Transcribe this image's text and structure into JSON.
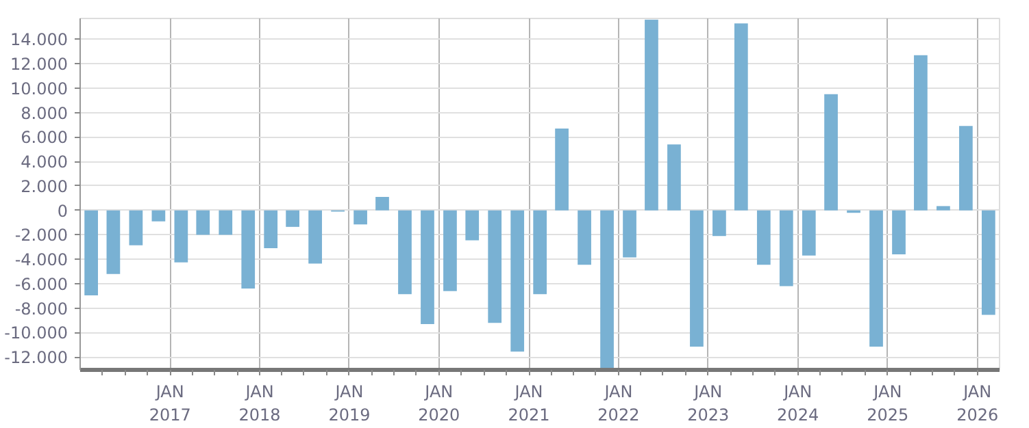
{
  "chart_data": {
    "type": "bar",
    "x": [
      "2016-02-15",
      "2016-05-15",
      "2016-08-15",
      "2016-11-15",
      "2017-02-15",
      "2017-05-15",
      "2017-08-15",
      "2017-11-15",
      "2018-02-15",
      "2018-05-15",
      "2018-08-15",
      "2018-11-15",
      "2019-02-15",
      "2019-05-15",
      "2019-08-15",
      "2019-11-15",
      "2020-02-15",
      "2020-05-15",
      "2020-08-15",
      "2020-11-15",
      "2021-02-15",
      "2021-05-15",
      "2021-08-15",
      "2021-11-15",
      "2022-02-15",
      "2022-05-15",
      "2022-08-15",
      "2022-11-15",
      "2023-02-15",
      "2023-05-15",
      "2023-08-15",
      "2023-11-15",
      "2024-02-15",
      "2024-05-15",
      "2024-08-15",
      "2024-11-15",
      "2025-02-15",
      "2025-05-15",
      "2025-08-15",
      "2025-11-15",
      "2026-02-15"
    ],
    "series": [
      {
        "color": "#79b1d3",
        "values": [
          -6950,
          -5200,
          -2850,
          -900,
          -4250,
          -2000,
          -2000,
          -6400,
          -3100,
          -1350,
          -4350,
          -100,
          -1150,
          1100,
          -6850,
          -9300,
          -6600,
          -2450,
          -9200,
          -11550,
          -6850,
          6700,
          -4450,
          -13000,
          -3850,
          15600,
          5400,
          -11150,
          -2100,
          15300,
          -4450,
          -6200,
          -3700,
          9500,
          -200,
          -11150,
          -3600,
          12700,
          350,
          6900,
          -8550
        ]
      }
    ],
    "xlim": [
      "2016-01-01",
      "2026-04-01"
    ],
    "xticks": [
      {
        "value": "2016-04-01",
        "label": null
      },
      {
        "value": "2016-07-01",
        "label": null
      },
      {
        "value": "2016-10-01",
        "label": null
      },
      {
        "value": "2017-01-01",
        "label": "JAN\n2017"
      },
      {
        "value": "2017-04-01",
        "label": null
      },
      {
        "value": "2017-07-01",
        "label": null
      },
      {
        "value": "2017-10-01",
        "label": null
      },
      {
        "value": "2018-01-01",
        "label": "JAN\n2018"
      },
      {
        "value": "2018-04-01",
        "label": null
      },
      {
        "value": "2018-07-01",
        "label": null
      },
      {
        "value": "2018-10-01",
        "label": null
      },
      {
        "value": "2019-01-01",
        "label": "JAN\n2019"
      },
      {
        "value": "2019-04-01",
        "label": null
      },
      {
        "value": "2019-07-01",
        "label": null
      },
      {
        "value": "2019-10-01",
        "label": null
      },
      {
        "value": "2020-01-01",
        "label": "JAN\n2020"
      },
      {
        "value": "2020-04-01",
        "label": null
      },
      {
        "value": "2020-07-01",
        "label": null
      },
      {
        "value": "2020-10-01",
        "label": null
      },
      {
        "value": "2021-01-01",
        "label": "JAN\n2021"
      },
      {
        "value": "2021-04-01",
        "label": null
      },
      {
        "value": "2021-07-01",
        "label": null
      },
      {
        "value": "2021-10-01",
        "label": null
      },
      {
        "value": "2022-01-01",
        "label": "JAN\n2022"
      },
      {
        "value": "2022-04-01",
        "label": null
      },
      {
        "value": "2022-07-01",
        "label": null
      },
      {
        "value": "2022-10-01",
        "label": null
      },
      {
        "value": "2023-01-01",
        "label": "JAN\n2023"
      },
      {
        "value": "2023-04-01",
        "label": null
      },
      {
        "value": "2023-07-01",
        "label": null
      },
      {
        "value": "2023-10-01",
        "label": null
      },
      {
        "value": "2024-01-01",
        "label": "JAN\n2024"
      },
      {
        "value": "2024-04-01",
        "label": null
      },
      {
        "value": "2024-07-01",
        "label": null
      },
      {
        "value": "2024-10-01",
        "label": null
      },
      {
        "value": "2025-01-01",
        "label": "JAN\n2025"
      },
      {
        "value": "2025-04-01",
        "label": null
      },
      {
        "value": "2025-07-01",
        "label": null
      },
      {
        "value": "2025-10-01",
        "label": null
      },
      {
        "value": "2026-01-01",
        "label": "JAN\n2026"
      }
    ],
    "ylim": [
      -13050,
      15700
    ],
    "yticks": [
      {
        "value": -12000,
        "label": "-12.000"
      },
      {
        "value": -10000,
        "label": "-10.000"
      },
      {
        "value": -8000,
        "label": "-8.000"
      },
      {
        "value": -6000,
        "label": "-6.000"
      },
      {
        "value": -4000,
        "label": "-4.000"
      },
      {
        "value": -2000,
        "label": "-2.000"
      },
      0,
      {
        "value": 2000,
        "label": "2.000"
      },
      {
        "value": 4000,
        "label": "4.000"
      },
      {
        "value": 6000,
        "label": "6.000"
      },
      {
        "value": 8000,
        "label": "8.000"
      },
      {
        "value": 10000,
        "label": "10.000"
      },
      {
        "value": 12000,
        "label": "12.000"
      },
      {
        "value": 14000,
        "label": "14.000"
      }
    ],
    "grid": true
  }
}
